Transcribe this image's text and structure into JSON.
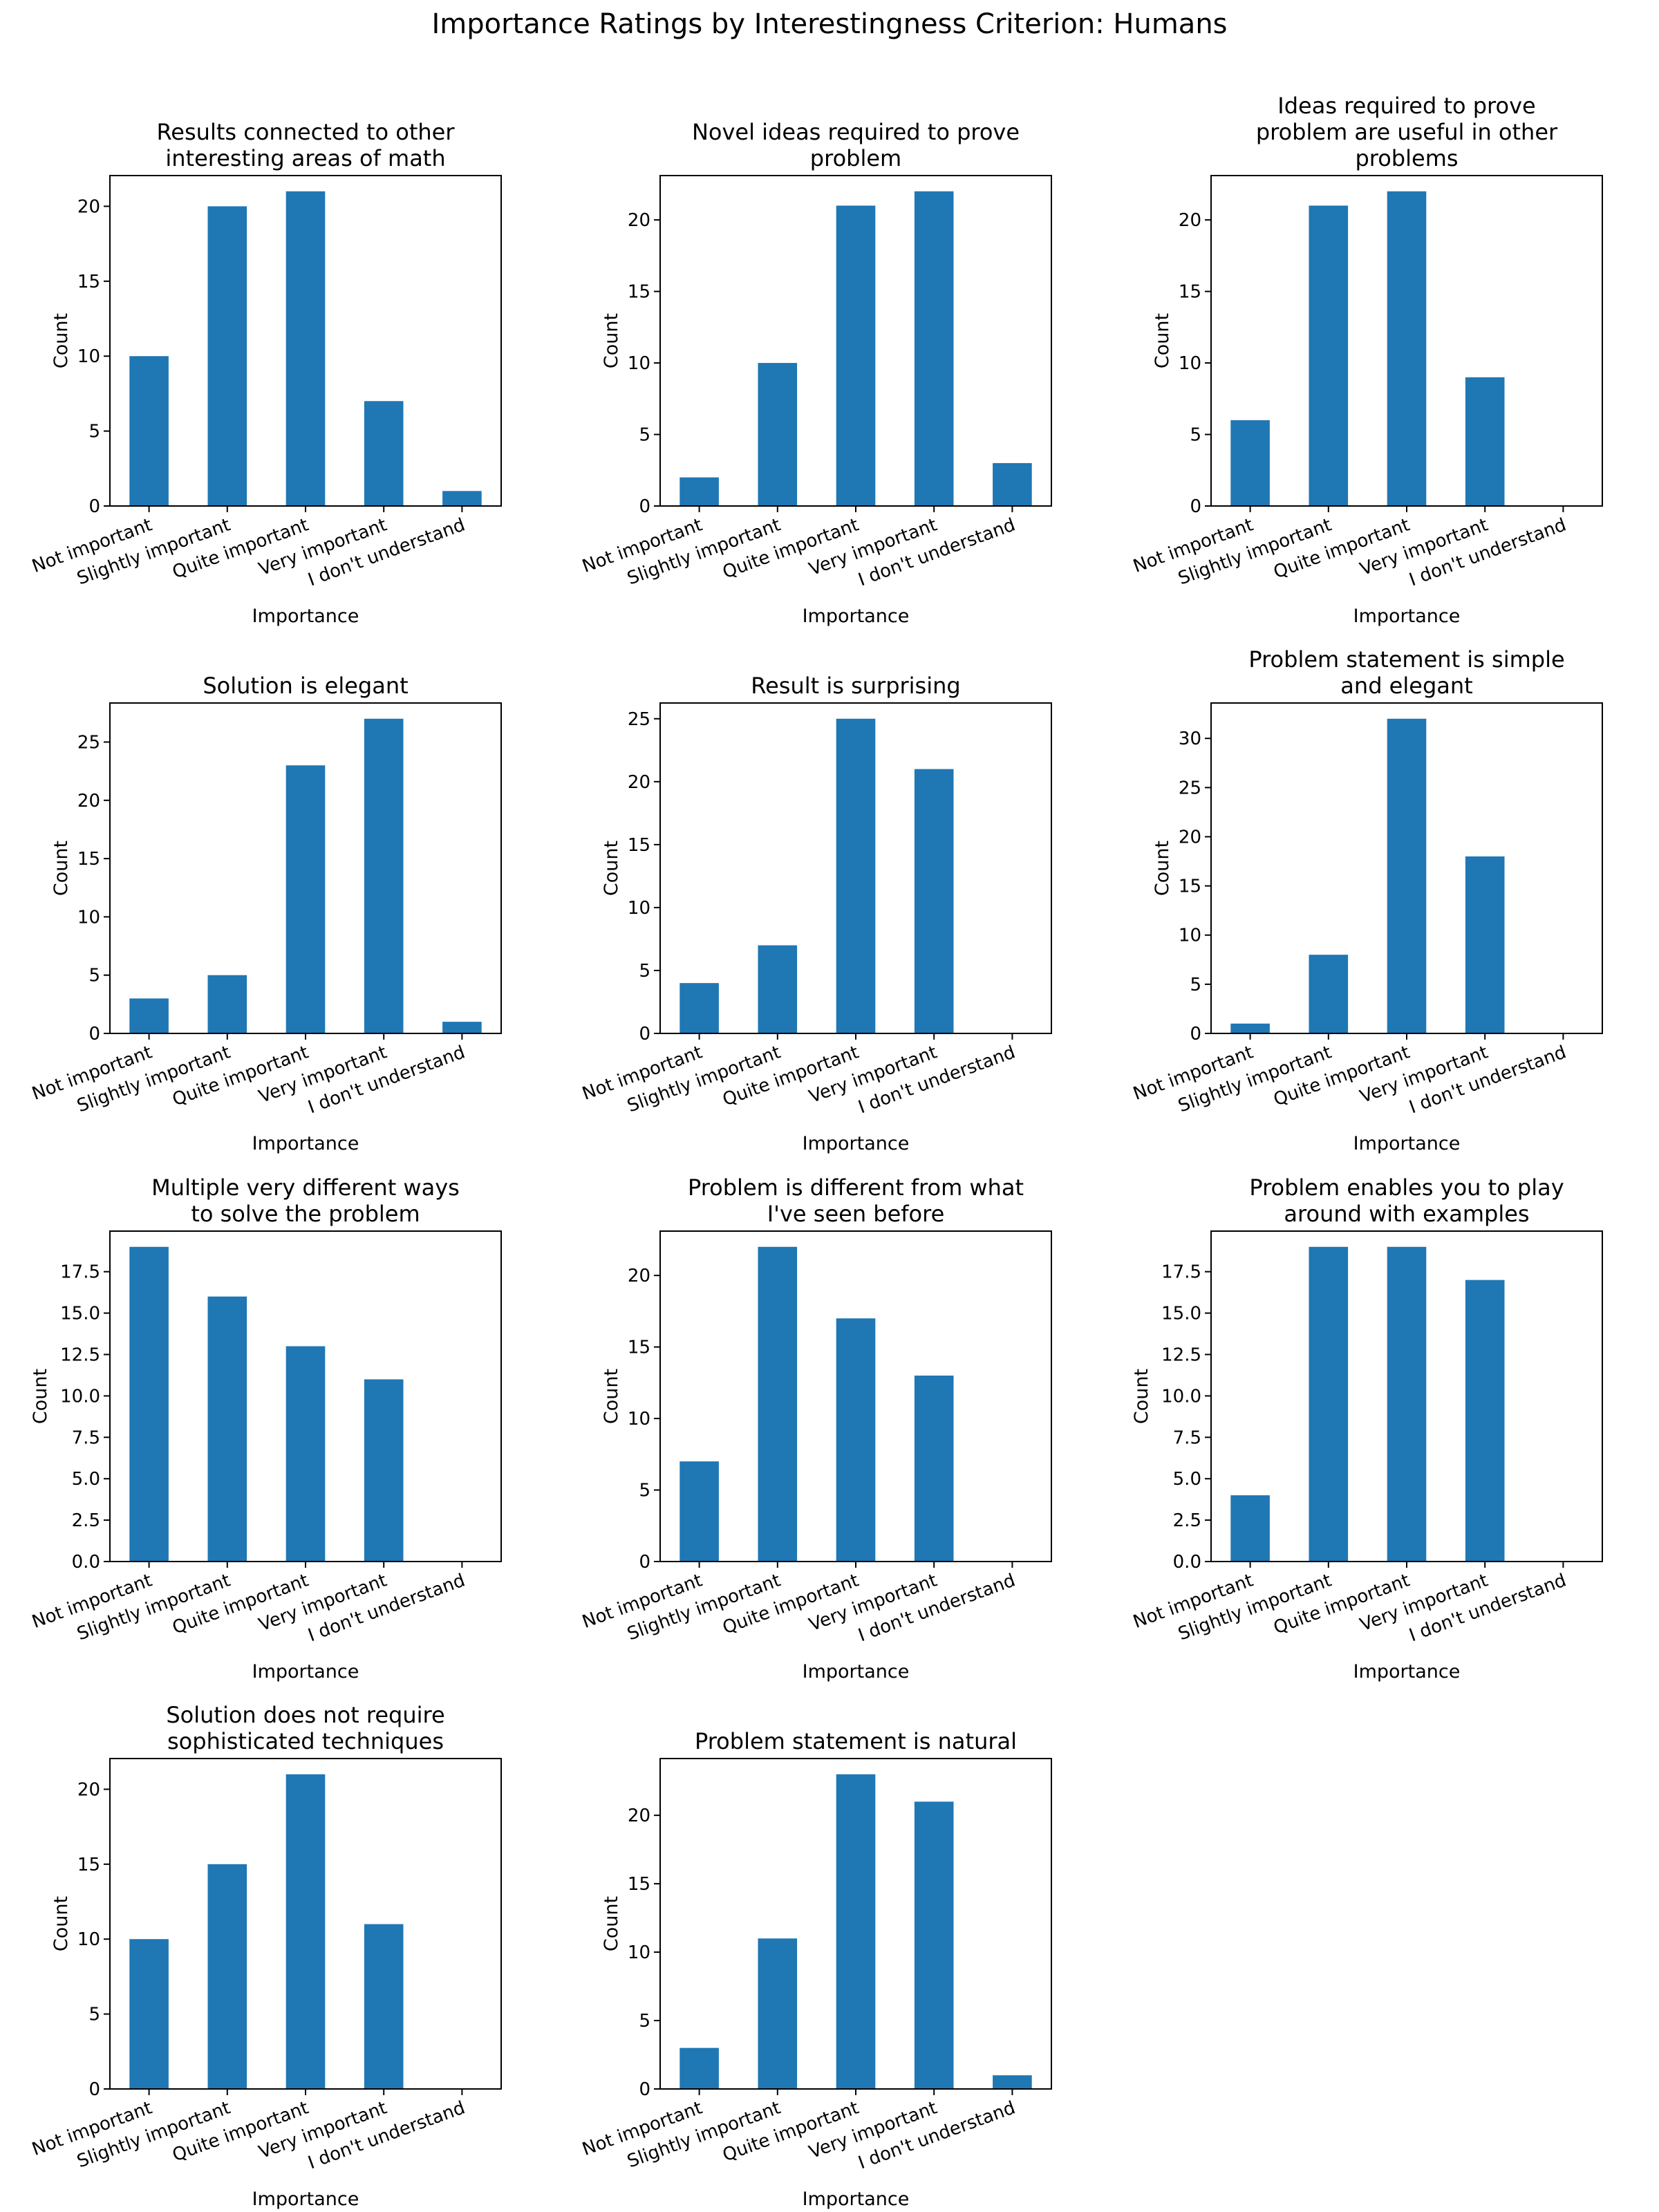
{
  "figure": {
    "title": "Importance Ratings by Interestingness Criterion: Humans"
  },
  "colors": {
    "bar": "#1f77b4",
    "axis": "#000000",
    "background": "#ffffff"
  },
  "chart_data": [
    {
      "type": "bar",
      "title_lines": [
        "Results connected to other",
        "interesting areas of math"
      ],
      "categories": [
        "Not important",
        "Slightly important",
        "Quite important",
        "Very important",
        "I don't understand"
      ],
      "values": [
        10,
        20,
        21,
        7,
        1
      ],
      "xlabel": "Importance",
      "ylabel": "Count",
      "ylim": [
        0,
        22.05
      ],
      "yticks": [
        0,
        5,
        10,
        15,
        20
      ],
      "ytick_labels": [
        "0",
        "5",
        "10",
        "15",
        "20"
      ]
    },
    {
      "type": "bar",
      "title_lines": [
        "Novel ideas required to prove",
        "problem"
      ],
      "categories": [
        "Not important",
        "Slightly important",
        "Quite important",
        "Very important",
        "I don't understand"
      ],
      "values": [
        2,
        10,
        21,
        22,
        3
      ],
      "xlabel": "Importance",
      "ylabel": "Count",
      "ylim": [
        0,
        23.1
      ],
      "yticks": [
        0,
        5,
        10,
        15,
        20
      ],
      "ytick_labels": [
        "0",
        "5",
        "10",
        "15",
        "20"
      ]
    },
    {
      "type": "bar",
      "title_lines": [
        "Ideas required to prove",
        "problem are useful in other",
        "problems"
      ],
      "categories": [
        "Not important",
        "Slightly important",
        "Quite important",
        "Very important",
        "I don't understand"
      ],
      "values": [
        6,
        21,
        22,
        9,
        0
      ],
      "xlabel": "Importance",
      "ylabel": "Count",
      "ylim": [
        0,
        23.1
      ],
      "yticks": [
        0,
        5,
        10,
        15,
        20
      ],
      "ytick_labels": [
        "0",
        "5",
        "10",
        "15",
        "20"
      ]
    },
    {
      "type": "bar",
      "title_lines": [
        "Solution is elegant"
      ],
      "categories": [
        "Not important",
        "Slightly important",
        "Quite important",
        "Very important",
        "I don't understand"
      ],
      "values": [
        3,
        5,
        23,
        27,
        1
      ],
      "xlabel": "Importance",
      "ylabel": "Count",
      "ylim": [
        0,
        28.35
      ],
      "yticks": [
        0,
        5,
        10,
        15,
        20,
        25
      ],
      "ytick_labels": [
        "0",
        "5",
        "10",
        "15",
        "20",
        "25"
      ]
    },
    {
      "type": "bar",
      "title_lines": [
        "Result is surprising"
      ],
      "categories": [
        "Not important",
        "Slightly important",
        "Quite important",
        "Very important",
        "I don't understand"
      ],
      "values": [
        4,
        7,
        25,
        21,
        0
      ],
      "xlabel": "Importance",
      "ylabel": "Count",
      "ylim": [
        0,
        26.25
      ],
      "yticks": [
        0,
        5,
        10,
        15,
        20,
        25
      ],
      "ytick_labels": [
        "0",
        "5",
        "10",
        "15",
        "20",
        "25"
      ]
    },
    {
      "type": "bar",
      "title_lines": [
        "Problem statement is simple",
        "and elegant"
      ],
      "categories": [
        "Not important",
        "Slightly important",
        "Quite important",
        "Very important",
        "I don't understand"
      ],
      "values": [
        1,
        8,
        32,
        18,
        0
      ],
      "xlabel": "Importance",
      "ylabel": "Count",
      "ylim": [
        0,
        33.6
      ],
      "yticks": [
        0,
        5,
        10,
        15,
        20,
        25,
        30
      ],
      "ytick_labels": [
        "0",
        "5",
        "10",
        "15",
        "20",
        "25",
        "30"
      ]
    },
    {
      "type": "bar",
      "title_lines": [
        "Multiple very different ways",
        "to solve the problem"
      ],
      "categories": [
        "Not important",
        "Slightly important",
        "Quite important",
        "Very important",
        "I don't understand"
      ],
      "values": [
        19,
        16,
        13,
        11,
        0
      ],
      "xlabel": "Importance",
      "ylabel": "Count",
      "ylim": [
        0,
        19.95
      ],
      "yticks": [
        0,
        2.5,
        5,
        7.5,
        10,
        12.5,
        15,
        17.5
      ],
      "ytick_labels": [
        "0.0",
        "2.5",
        "5.0",
        "7.5",
        "10.0",
        "12.5",
        "15.0",
        "17.5"
      ]
    },
    {
      "type": "bar",
      "title_lines": [
        "Problem is different from what",
        "I've seen before"
      ],
      "categories": [
        "Not important",
        "Slightly important",
        "Quite important",
        "Very important",
        "I don't understand"
      ],
      "values": [
        7,
        22,
        17,
        13,
        0
      ],
      "xlabel": "Importance",
      "ylabel": "Count",
      "ylim": [
        0,
        23.1
      ],
      "yticks": [
        0,
        5,
        10,
        15,
        20
      ],
      "ytick_labels": [
        "0",
        "5",
        "10",
        "15",
        "20"
      ]
    },
    {
      "type": "bar",
      "title_lines": [
        "Problem enables you to play",
        "around with examples"
      ],
      "categories": [
        "Not important",
        "Slightly important",
        "Quite important",
        "Very important",
        "I don't understand"
      ],
      "values": [
        4,
        19,
        19,
        17,
        0
      ],
      "xlabel": "Importance",
      "ylabel": "Count",
      "ylim": [
        0,
        19.95
      ],
      "yticks": [
        0,
        2.5,
        5,
        7.5,
        10,
        12.5,
        15,
        17.5
      ],
      "ytick_labels": [
        "0.0",
        "2.5",
        "5.0",
        "7.5",
        "10.0",
        "12.5",
        "15.0",
        "17.5"
      ]
    },
    {
      "type": "bar",
      "title_lines": [
        "Solution does not require",
        "sophisticated techniques"
      ],
      "categories": [
        "Not important",
        "Slightly important",
        "Quite important",
        "Very important",
        "I don't understand"
      ],
      "values": [
        10,
        15,
        21,
        11,
        0
      ],
      "xlabel": "Importance",
      "ylabel": "Count",
      "ylim": [
        0,
        22.05
      ],
      "yticks": [
        0,
        5,
        10,
        15,
        20
      ],
      "ytick_labels": [
        "0",
        "5",
        "10",
        "15",
        "20"
      ]
    },
    {
      "type": "bar",
      "title_lines": [
        "Problem statement is natural"
      ],
      "categories": [
        "Not important",
        "Slightly important",
        "Quite important",
        "Very important",
        "I don't understand"
      ],
      "values": [
        3,
        11,
        23,
        21,
        1
      ],
      "xlabel": "Importance",
      "ylabel": "Count",
      "ylim": [
        0,
        24.15
      ],
      "yticks": [
        0,
        5,
        10,
        15,
        20
      ],
      "ytick_labels": [
        "0",
        "5",
        "10",
        "15",
        "20"
      ]
    }
  ]
}
